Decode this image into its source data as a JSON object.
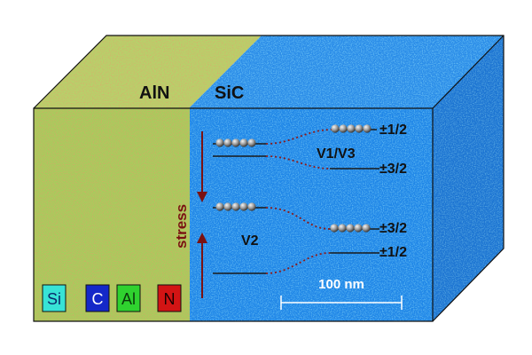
{
  "materials": {
    "left": "AlN",
    "right": "SiC"
  },
  "defect_groups": {
    "upper": "V1/V3",
    "lower": "V2"
  },
  "spin_levels": {
    "upper_top": "±1/2",
    "upper_bottom": "±3/2",
    "lower_top": "±3/2",
    "lower_bottom": "±1/2"
  },
  "stress_label": "stress",
  "scale_bar": "100 nm",
  "legend": [
    {
      "symbol": "Si",
      "color": "#37e3d6"
    },
    {
      "symbol": "C",
      "color": "#1428c8"
    },
    {
      "symbol": "Al",
      "color": "#2fd22f"
    },
    {
      "symbol": "N",
      "color": "#d21414"
    }
  ],
  "colors": {
    "aln_surface": "#a8cf62",
    "sic_surface": "#1f86e6",
    "stress_arrow": "#7a1212",
    "dotted_line": "#8b1a1a",
    "level_line": "#1a1a1a",
    "scale_bar": "#ffffff"
  }
}
